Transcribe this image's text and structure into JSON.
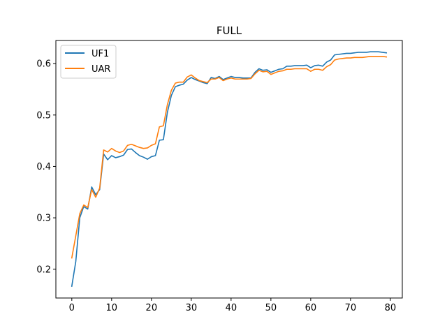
{
  "chart_data": {
    "type": "line",
    "title": "FULL",
    "xlabel": "",
    "ylabel": "",
    "xlim": [
      -4,
      83
    ],
    "ylim": [
      0.144,
      0.645
    ],
    "xticks": [
      0,
      10,
      20,
      30,
      40,
      50,
      60,
      70,
      80
    ],
    "xtick_labels": [
      "0",
      "10",
      "20",
      "30",
      "40",
      "50",
      "60",
      "70",
      "80"
    ],
    "yticks": [
      0.2,
      0.3,
      0.4,
      0.5,
      0.6
    ],
    "ytick_labels": [
      "0.2",
      "0.3",
      "0.4",
      "0.5",
      "0.6"
    ],
    "grid": false,
    "legend_position": "top-left",
    "x": [
      0,
      1,
      2,
      3,
      4,
      5,
      6,
      7,
      8,
      9,
      10,
      11,
      12,
      13,
      14,
      15,
      16,
      17,
      18,
      19,
      20,
      21,
      22,
      23,
      24,
      25,
      26,
      27,
      28,
      29,
      30,
      31,
      32,
      33,
      34,
      35,
      36,
      37,
      38,
      39,
      40,
      41,
      42,
      43,
      44,
      45,
      46,
      47,
      48,
      49,
      50,
      51,
      52,
      53,
      54,
      55,
      56,
      57,
      58,
      59,
      60,
      61,
      62,
      63,
      64,
      65,
      66,
      67,
      68,
      69,
      70,
      71,
      72,
      73,
      74,
      75,
      76,
      77,
      78,
      79
    ],
    "series": [
      {
        "name": "UF1",
        "color": "#1f77b4",
        "values": [
          0.167,
          0.215,
          0.3,
          0.322,
          0.317,
          0.36,
          0.345,
          0.355,
          0.424,
          0.413,
          0.421,
          0.417,
          0.419,
          0.422,
          0.433,
          0.434,
          0.427,
          0.421,
          0.418,
          0.414,
          0.419,
          0.421,
          0.451,
          0.452,
          0.505,
          0.538,
          0.555,
          0.558,
          0.56,
          0.568,
          0.573,
          0.569,
          0.566,
          0.563,
          0.561,
          0.573,
          0.571,
          0.575,
          0.569,
          0.572,
          0.575,
          0.573,
          0.573,
          0.572,
          0.572,
          0.572,
          0.583,
          0.59,
          0.587,
          0.588,
          0.583,
          0.586,
          0.589,
          0.59,
          0.595,
          0.595,
          0.596,
          0.596,
          0.596,
          0.597,
          0.592,
          0.596,
          0.597,
          0.595,
          0.603,
          0.607,
          0.617,
          0.618,
          0.619,
          0.62,
          0.62,
          0.621,
          0.622,
          0.622,
          0.622,
          0.623,
          0.623,
          0.623,
          0.622,
          0.621
        ]
      },
      {
        "name": "UAR",
        "color": "#ff7f0e",
        "values": [
          0.222,
          0.265,
          0.308,
          0.325,
          0.32,
          0.355,
          0.34,
          0.358,
          0.432,
          0.428,
          0.435,
          0.43,
          0.427,
          0.43,
          0.441,
          0.443,
          0.44,
          0.437,
          0.435,
          0.436,
          0.441,
          0.444,
          0.477,
          0.479,
          0.52,
          0.548,
          0.562,
          0.564,
          0.564,
          0.574,
          0.578,
          0.572,
          0.567,
          0.565,
          0.563,
          0.57,
          0.57,
          0.573,
          0.567,
          0.57,
          0.572,
          0.57,
          0.57,
          0.57,
          0.57,
          0.571,
          0.58,
          0.587,
          0.584,
          0.585,
          0.579,
          0.582,
          0.585,
          0.586,
          0.589,
          0.589,
          0.59,
          0.59,
          0.59,
          0.59,
          0.585,
          0.589,
          0.589,
          0.587,
          0.594,
          0.598,
          0.607,
          0.609,
          0.61,
          0.611,
          0.611,
          0.612,
          0.612,
          0.612,
          0.613,
          0.614,
          0.614,
          0.614,
          0.614,
          0.613
        ]
      }
    ]
  }
}
